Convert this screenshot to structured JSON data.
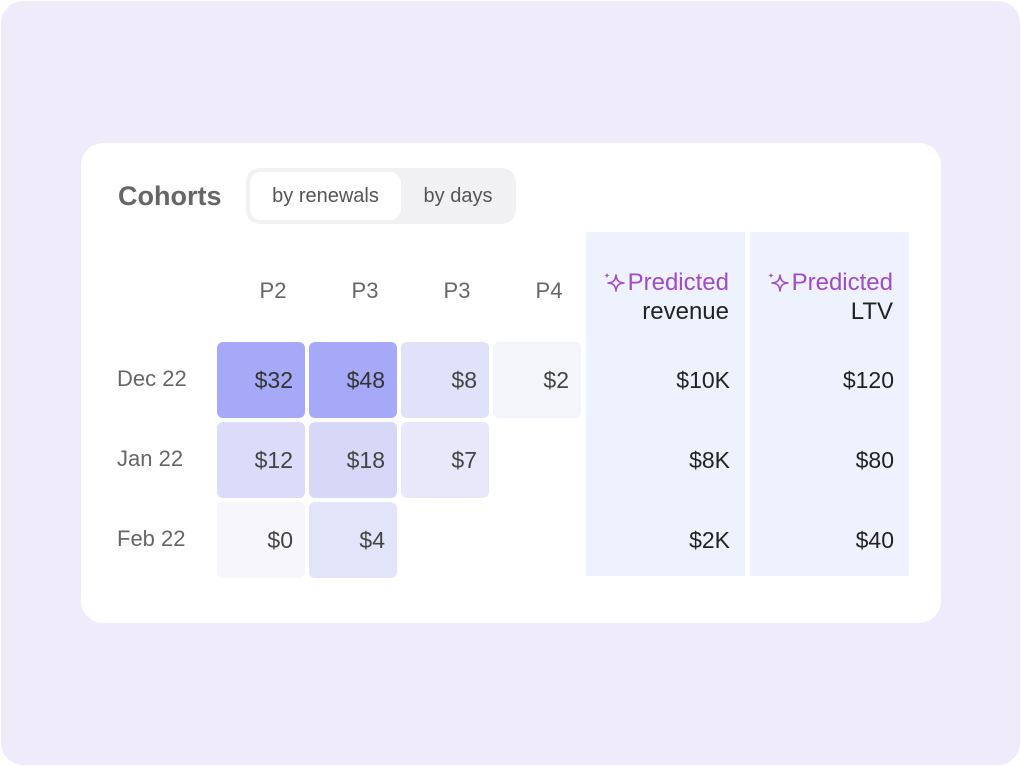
{
  "cohorts": {
    "title": "Cohorts",
    "toggle": {
      "active": "by renewals",
      "inactive": "by days"
    },
    "columns": [
      "P2",
      "P3",
      "P3",
      "P4"
    ],
    "predicted": {
      "sparkle_icon": "sparkle-icon",
      "accent_color": "#a24bc7",
      "revenue": {
        "line1": "Predicted",
        "line2": "revenue"
      },
      "ltv": {
        "line1": "Predicted",
        "line2": "LTV"
      }
    },
    "rows": [
      {
        "label": "Dec 22",
        "cells": [
          "$32",
          "$48",
          "$8",
          "$2"
        ],
        "revenue": "$10K",
        "ltv": "$120"
      },
      {
        "label": "Jan 22",
        "cells": [
          "$12",
          "$18",
          "$7"
        ],
        "revenue": "$8K",
        "ltv": "$80"
      },
      {
        "label": "Feb 22",
        "cells": [
          "$0",
          "$4"
        ],
        "revenue": "$2K",
        "ltv": "$40"
      }
    ]
  }
}
